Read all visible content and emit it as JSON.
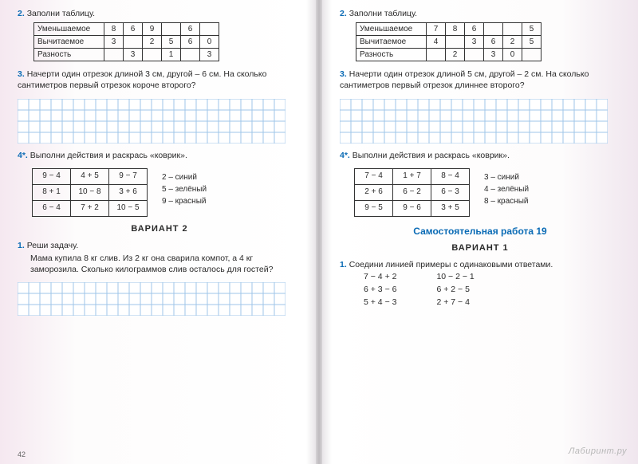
{
  "grid": {
    "cell": 14,
    "cols": 24,
    "rows_q3": 4,
    "rows_bottom": 3,
    "stroke": "#9fc6e8",
    "fill": "#ffffff"
  },
  "left": {
    "q2": {
      "num": "2.",
      "text": "Заполни таблицу.",
      "rowLabels": [
        "Уменьшаемое",
        "Вычитаемое",
        "Разность"
      ],
      "cells": [
        [
          "8",
          "6",
          "9",
          "",
          "6",
          ""
        ],
        [
          "3",
          "",
          "2",
          "5",
          "6",
          "0"
        ],
        [
          "",
          "3",
          "",
          "1",
          "",
          "3"
        ]
      ]
    },
    "q3": {
      "num": "3.",
      "text": "Начерти один отрезок длиной 3 см, другой – 6 см. На сколько сантиметров первый отрезок короче второго?"
    },
    "q4": {
      "num": "4*.",
      "text": "Выполни действия и раскрась «коврик».",
      "expr": [
        [
          "9 − 4",
          "4 + 5",
          "9 − 7"
        ],
        [
          "8 + 1",
          "10 − 8",
          "3 + 6"
        ],
        [
          "6 − 4",
          "7 + 2",
          "10 − 5"
        ]
      ],
      "legend": [
        "2 – синий",
        "5 – зелёный",
        "9 – красный"
      ]
    },
    "variant": "ВАРИАНТ 2",
    "q1v2": {
      "num": "1.",
      "label": "Реши задачу.",
      "text": "Мама купила 8 кг слив. Из 2 кг она сварила компот, а 4 кг заморозила. Сколько килограммов слив осталось для гостей?"
    },
    "pagenum": "42"
  },
  "right": {
    "q2": {
      "num": "2.",
      "text": "Заполни таблицу.",
      "rowLabels": [
        "Уменьшаемое",
        "Вычитаемое",
        "Разность"
      ],
      "cells": [
        [
          "7",
          "8",
          "6",
          "",
          "",
          "5"
        ],
        [
          "4",
          "",
          "3",
          "6",
          "2",
          "5"
        ],
        [
          "",
          "2",
          "",
          "3",
          "0",
          ""
        ]
      ]
    },
    "q3": {
      "num": "3.",
      "text": "Начерти один отрезок длиной 5 см, другой – 2 см. На сколько сантиметров первый отрезок длиннее второго?"
    },
    "q4": {
      "num": "4*.",
      "text": "Выполни действия и раскрась «коврик».",
      "expr": [
        [
          "7 − 4",
          "1 + 7",
          "8 − 4"
        ],
        [
          "2 + 6",
          "6 − 2",
          "6 − 3"
        ],
        [
          "9 − 5",
          "9 − 6",
          "3 + 5"
        ]
      ],
      "legend": [
        "3 – синий",
        "4 – зелёный",
        "8 – красный"
      ]
    },
    "sw_title": "Самостоятельная работа 19",
    "variant": "ВАРИАНТ 1",
    "q1sw": {
      "num": "1.",
      "text": "Соедини линией примеры с одинаковыми ответами.",
      "colA": [
        "7 − 4 + 2",
        "6 + 3 − 6",
        "5 + 4 − 3"
      ],
      "colB": [
        "10 − 2 − 1",
        "6 + 2 − 5",
        "2 + 7 − 4"
      ]
    }
  },
  "watermark": "Лабиринт.ру"
}
